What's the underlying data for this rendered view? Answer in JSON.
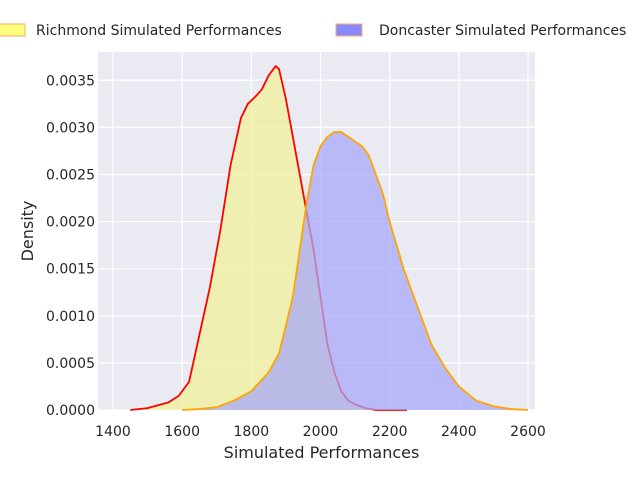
{
  "chart_data": {
    "type": "area",
    "title": "",
    "xlabel": "Simulated Performances",
    "ylabel": "Density",
    "xlim": [
      1400,
      2600
    ],
    "ylim": [
      0,
      0.0038
    ],
    "xticks": [
      1400,
      1600,
      1800,
      2000,
      2200,
      2400,
      2600
    ],
    "yticks": [
      0.0,
      0.0005,
      0.001,
      0.0015,
      0.002,
      0.0025,
      0.003,
      0.0035
    ],
    "ytick_labels": [
      "0.0000",
      "0.0005",
      "0.0010",
      "0.0015",
      "0.0020",
      "0.0025",
      "0.0030",
      "0.0035"
    ],
    "grid": true,
    "legend_position": "top",
    "series": [
      {
        "name": "Richmond Simulated Performances",
        "fill_color": "#f0f0a0",
        "legend_color": "#ffff80",
        "line_color": "#ff0000",
        "x": [
          1450,
          1500,
          1530,
          1560,
          1590,
          1620,
          1650,
          1680,
          1710,
          1740,
          1770,
          1790,
          1810,
          1830,
          1850,
          1870,
          1880,
          1900,
          1920,
          1940,
          1960,
          1980,
          2000,
          2020,
          2040,
          2060,
          2080,
          2100,
          2130,
          2160,
          2200,
          2250
        ],
        "y": [
          0.0,
          2e-05,
          5e-05,
          8e-05,
          0.00015,
          0.0003,
          0.0008,
          0.0013,
          0.0019,
          0.0026,
          0.0031,
          0.00325,
          0.00332,
          0.0034,
          0.00355,
          0.00365,
          0.00362,
          0.0033,
          0.0029,
          0.0025,
          0.0021,
          0.0017,
          0.0012,
          0.0007,
          0.0004,
          0.0002,
          0.0001,
          6e-05,
          2e-05,
          0.0,
          0.0,
          0.0
        ]
      },
      {
        "name": "Doncaster Simulated Performances",
        "fill_color": "#a8a8f8",
        "legend_color": "#8888ff",
        "line_color": "#ffa500",
        "x": [
          1600,
          1650,
          1700,
          1750,
          1800,
          1850,
          1880,
          1900,
          1920,
          1940,
          1960,
          1980,
          2000,
          2020,
          2040,
          2060,
          2080,
          2100,
          2120,
          2140,
          2160,
          2180,
          2200,
          2240,
          2280,
          2320,
          2360,
          2400,
          2450,
          2500,
          2550,
          2600
        ],
        "y": [
          0.0,
          1e-05,
          3e-05,
          0.0001,
          0.0002,
          0.0004,
          0.0006,
          0.0009,
          0.0012,
          0.0017,
          0.0022,
          0.0026,
          0.0028,
          0.0029,
          0.00295,
          0.00295,
          0.0029,
          0.00285,
          0.0028,
          0.0027,
          0.0025,
          0.0023,
          0.002,
          0.0015,
          0.0011,
          0.0007,
          0.00045,
          0.00025,
          0.0001,
          4e-05,
          1e-05,
          0.0
        ]
      }
    ]
  }
}
